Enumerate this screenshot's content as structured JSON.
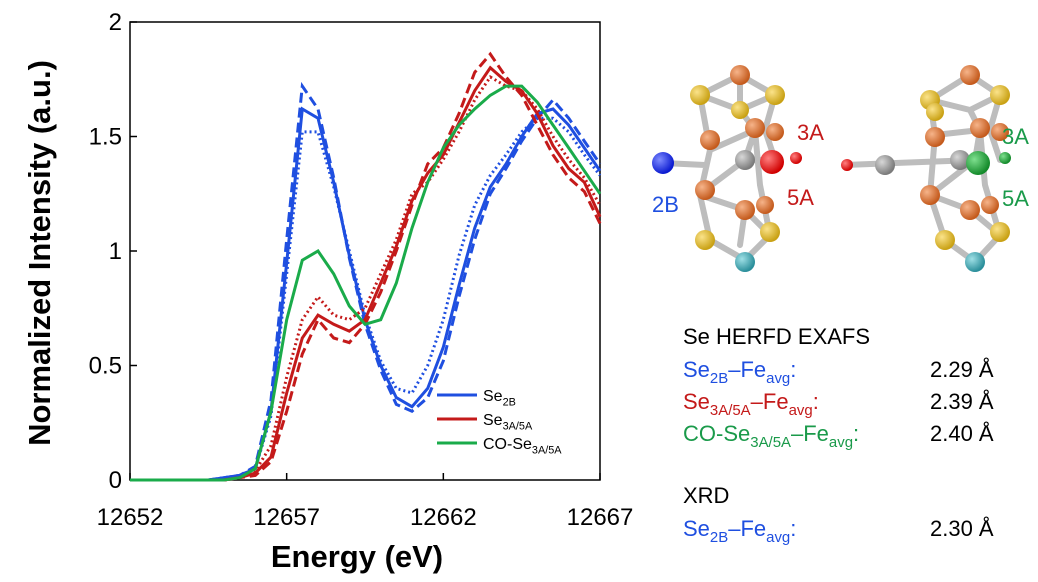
{
  "chart_data": {
    "type": "line",
    "x_label": "Energy (eV)",
    "y_label": "Normalized Intensity (a.u.)",
    "x": [
      12652,
      12652.5,
      12653,
      12653.5,
      12654,
      12654.5,
      12655,
      12655.5,
      12656,
      12656.5,
      12657,
      12657.5,
      12658,
      12658.5,
      12659,
      12659.5,
      12660,
      12660.5,
      12661,
      12661.5,
      12662,
      12662.5,
      12663,
      12663.5,
      12664,
      12664.5,
      12665,
      12665.5,
      12666,
      12666.5,
      12667
    ],
    "xlim": [
      12652,
      12667
    ],
    "xticks": [
      12652,
      12657,
      12662,
      12667
    ],
    "ylim": [
      0,
      2
    ],
    "yticks": [
      0,
      0.5,
      1,
      1.5,
      2
    ],
    "legend": "lower right",
    "series": [
      {
        "name": [
          {
            "text": "Se"
          },
          {
            "text": "2B",
            "sub": true
          }
        ],
        "color": "#1f4fe0",
        "variants": [
          {
            "style": "solid",
            "values": [
              0,
              0,
              0,
              0,
              0,
              0,
              0.01,
              0.02,
              0.05,
              0.3,
              0.95,
              1.62,
              1.58,
              1.3,
              0.98,
              0.7,
              0.5,
              0.36,
              0.32,
              0.4,
              0.58,
              0.85,
              1.1,
              1.28,
              1.38,
              1.5,
              1.6,
              1.62,
              1.55,
              1.45,
              1.35
            ]
          },
          {
            "style": "dashed",
            "values": [
              0,
              0,
              0,
              0,
              0,
              0,
              0.01,
              0.02,
              0.06,
              0.35,
              1.05,
              1.72,
              1.62,
              1.32,
              0.97,
              0.68,
              0.48,
              0.33,
              0.3,
              0.36,
              0.52,
              0.8,
              1.05,
              1.25,
              1.36,
              1.48,
              1.58,
              1.66,
              1.58,
              1.48,
              1.38
            ]
          },
          {
            "style": "dotted",
            "values": [
              0,
              0,
              0,
              0,
              0,
              0,
              0.01,
              0.02,
              0.05,
              0.28,
              0.9,
              1.52,
              1.52,
              1.28,
              1.0,
              0.72,
              0.52,
              0.4,
              0.38,
              0.5,
              0.7,
              0.98,
              1.2,
              1.33,
              1.42,
              1.52,
              1.58,
              1.58,
              1.52,
              1.42,
              1.33
            ]
          }
        ]
      },
      {
        "name": [
          {
            "text": "Se"
          },
          {
            "text": "3A/5A",
            "sub": true
          }
        ],
        "color": "#c41a1a",
        "variants": [
          {
            "style": "solid",
            "values": [
              0,
              0,
              0,
              0,
              0,
              0,
              0,
              0.01,
              0.03,
              0.1,
              0.38,
              0.62,
              0.72,
              0.68,
              0.65,
              0.7,
              0.86,
              1.02,
              1.22,
              1.34,
              1.42,
              1.56,
              1.7,
              1.8,
              1.74,
              1.7,
              1.6,
              1.46,
              1.36,
              1.3,
              1.15
            ]
          },
          {
            "style": "dashed",
            "values": [
              0,
              0,
              0,
              0,
              0,
              0,
              0,
              0.01,
              0.02,
              0.08,
              0.3,
              0.55,
              0.7,
              0.62,
              0.6,
              0.68,
              0.82,
              1.0,
              1.2,
              1.38,
              1.45,
              1.6,
              1.78,
              1.86,
              1.76,
              1.68,
              1.55,
              1.42,
              1.32,
              1.26,
              1.12
            ]
          },
          {
            "style": "dotted",
            "values": [
              0,
              0,
              0,
              0,
              0,
              0,
              0,
              0.01,
              0.04,
              0.15,
              0.45,
              0.7,
              0.8,
              0.72,
              0.7,
              0.75,
              0.9,
              1.05,
              1.25,
              1.3,
              1.4,
              1.52,
              1.66,
              1.76,
              1.72,
              1.7,
              1.62,
              1.5,
              1.4,
              1.32,
              1.2
            ]
          }
        ]
      },
      {
        "name": [
          {
            "text": "CO-Se"
          },
          {
            "text": "3A/5A",
            "sub": true
          }
        ],
        "color": "#1aab4a",
        "variants": [
          {
            "style": "solid",
            "values": [
              0,
              0,
              0,
              0,
              0,
              0,
              0,
              0.01,
              0.05,
              0.3,
              0.7,
              0.96,
              1.0,
              0.9,
              0.76,
              0.68,
              0.7,
              0.86,
              1.1,
              1.3,
              1.45,
              1.55,
              1.62,
              1.68,
              1.72,
              1.72,
              1.65,
              1.55,
              1.45,
              1.35,
              1.25
            ]
          }
        ]
      }
    ]
  },
  "diagram": {
    "labels": [
      {
        "text": "3A",
        "color": "#c41a1a"
      },
      {
        "text": "5A",
        "color": "#c41a1a"
      },
      {
        "text": "2B",
        "color": "#1f4fe0"
      },
      {
        "text": "3A",
        "color": "#1a9a4a"
      },
      {
        "text": "5A",
        "color": "#1a9a4a"
      }
    ]
  },
  "table": {
    "sections": [
      {
        "title": "Se HERFD EXAFS",
        "rows": [
          {
            "color": "#1f4fe0",
            "parts": [
              {
                "text": "Se"
              },
              {
                "text": "2B",
                "sub": true
              },
              {
                "text": "–Fe"
              },
              {
                "text": "avg",
                "sub": true
              },
              {
                "text": ":"
              }
            ],
            "value": "2.29 Å"
          },
          {
            "color": "#c41a1a",
            "parts": [
              {
                "text": "Se"
              },
              {
                "text": "3A/5A",
                "sub": true
              },
              {
                "text": "–Fe"
              },
              {
                "text": "avg",
                "sub": true
              },
              {
                "text": ":"
              }
            ],
            "value": "2.39 Å"
          },
          {
            "color": "#1a9a4a",
            "parts": [
              {
                "text": "CO-Se"
              },
              {
                "text": "3A/5A",
                "sub": true
              },
              {
                "text": "–Fe"
              },
              {
                "text": "avg",
                "sub": true
              },
              {
                "text": ":"
              }
            ],
            "value": "2.40 Å"
          }
        ]
      },
      {
        "title": "XRD",
        "rows": [
          {
            "color": "#1f4fe0",
            "parts": [
              {
                "text": "Se"
              },
              {
                "text": "2B",
                "sub": true
              },
              {
                "text": "–Fe"
              },
              {
                "text": "avg",
                "sub": true
              },
              {
                "text": ":"
              }
            ],
            "value": "2.30 Å"
          }
        ]
      }
    ]
  }
}
